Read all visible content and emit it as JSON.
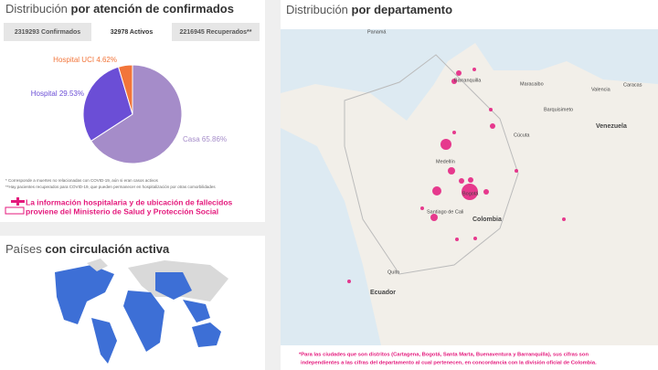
{
  "header": {
    "title_light": "Distribución",
    "title_bold": "por atención de confirmados"
  },
  "tabs": [
    "2319293 Confirmados",
    "32978 Activos",
    "2216945 Recuperados**"
  ],
  "chart_data": {
    "type": "pie",
    "categories": [
      "Casa",
      "Hospital",
      "Hospital UCI"
    ],
    "values": [
      65.86,
      29.53,
      4.62
    ],
    "value_labels": [
      "65.86%",
      "29.53%",
      "4.62%"
    ],
    "colors": [
      "#a58cc9",
      "#6b4ed6",
      "#f2753a"
    ]
  },
  "notes": [
    "* Corresponde a muertes no relacionadas con COVID-19, aún si eran casos activos",
    "**Hay pacientes recuperados para COVID-19, que pueden permanecer en hospitalización por otras comorbilidades"
  ],
  "source_message": [
    "La información hospitalaria y de ubicación de fallecidos",
    "proviene del Ministerio de Salud y Protección Social"
  ],
  "countries_panel": {
    "title_light": "Países",
    "title_bold": "con circulación activa"
  },
  "map_panel": {
    "title_light": "Distribución",
    "title_bold": "por departamento",
    "places": [
      "Barranquilla",
      "Maracaibo",
      "Caracas",
      "Valencia",
      "Barquisimeto",
      "Cúcuta",
      "Venezuela",
      "Medellín",
      "Bogotá",
      "Colombia",
      "Santiago de Cali",
      "Ecuador",
      "Quito",
      "Panamá"
    ],
    "footnote": [
      "*Para las ciudades que son distritos (Cartagena, Bogotá, Santa Marta, Buenaventura y Barranquilla), sus cifras son",
      "independientes a las cifras del departamento al cual pertenecen, en concordancia con la división oficial de Colombia."
    ]
  }
}
